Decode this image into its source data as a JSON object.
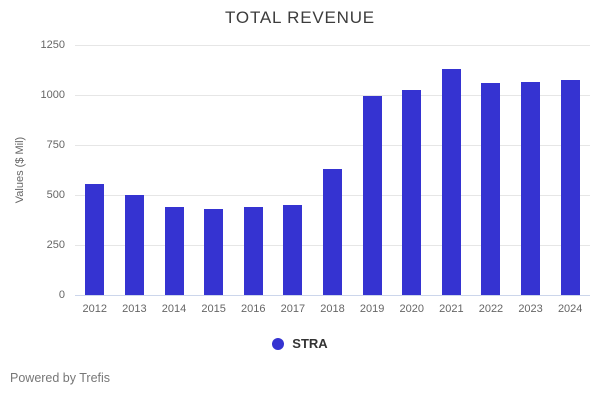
{
  "title": "TOTAL REVENUE",
  "footer": "Powered by Trefis",
  "legend": {
    "label": "STRA"
  },
  "colors": {
    "bar": "#3533d1",
    "grid": "#e6e6e6",
    "axis_line": "#ccd6eb",
    "title_text": "#3c3c3c",
    "tick_text": "#666666"
  },
  "chart_data": {
    "type": "bar",
    "title": "TOTAL REVENUE",
    "xlabel": "",
    "ylabel": "Values ($ Mil)",
    "categories": [
      "2012",
      "2013",
      "2014",
      "2015",
      "2016",
      "2017",
      "2018",
      "2019",
      "2020",
      "2021",
      "2022",
      "2023",
      "2024"
    ],
    "series": [
      {
        "name": "STRA",
        "values": [
          555,
          500,
          440,
          430,
          440,
          450,
          630,
          995,
          1025,
          1130,
          1060,
          1065,
          1075
        ]
      }
    ],
    "ylim": [
      0,
      1250
    ],
    "yticks": [
      0,
      250,
      500,
      750,
      1000,
      1250
    ],
    "grid": true,
    "legend_position": "bottom"
  }
}
